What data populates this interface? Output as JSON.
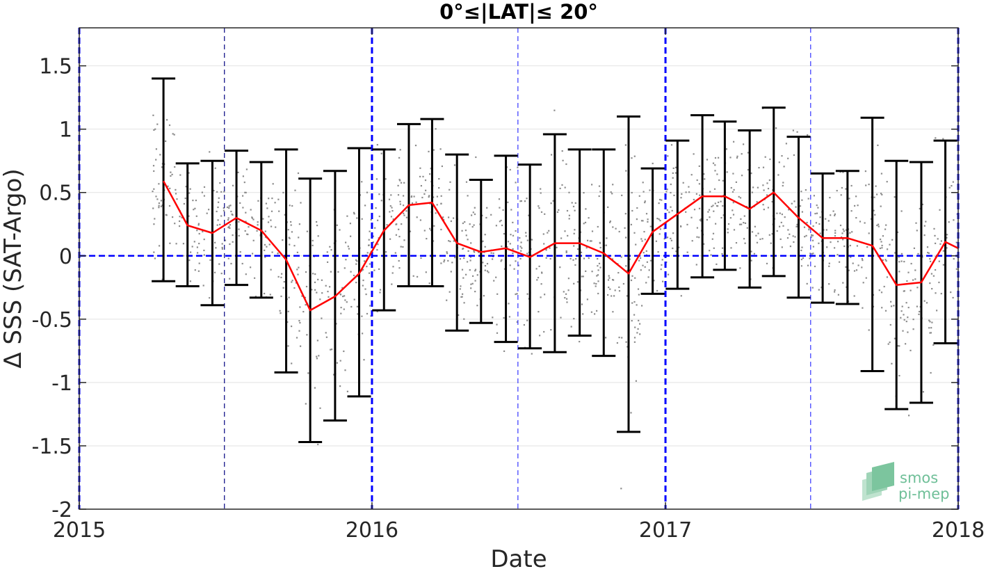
{
  "chart_data": {
    "type": "line",
    "title": "0°≤|LAT|≤ 20°",
    "xlabel": "Date",
    "ylabel": "Δ SSS (SAT-Argo)",
    "xlim": [
      "2015-01-01",
      "2018-01-01"
    ],
    "ylim": [
      -2,
      1.8
    ],
    "x_ticks": [
      "2015-01-01",
      "2016-01-01",
      "2017-01-01",
      "2018-01-01"
    ],
    "x_tick_labels": [
      "2015",
      "2016",
      "2017",
      "2018"
    ],
    "y_ticks": [
      -2,
      -1.5,
      -1,
      -0.5,
      0,
      0.5,
      1,
      1.5
    ],
    "y_tick_labels": [
      "-2",
      "-1.5",
      "-1",
      "-0.5",
      "0",
      "0.5",
      "1",
      "1.5"
    ],
    "grid": "horizontal",
    "reference_line": {
      "y": 0,
      "color": "#0000ff",
      "style": "dashed"
    },
    "year_lines": [
      "2015-01-01",
      "2016-01-01",
      "2017-01-01",
      "2018-01-01"
    ],
    "half_year_lines": [
      "2015-07-01",
      "2016-07-01",
      "2017-07-01"
    ],
    "series": [
      {
        "type": "errorbar",
        "color": "#ff0000",
        "error_color": "#000000",
        "x": [
          "2015-04-16",
          "2015-05-16",
          "2015-06-16",
          "2015-07-16",
          "2015-08-16",
          "2015-09-16",
          "2015-10-16",
          "2015-11-16",
          "2015-12-16",
          "2016-01-16",
          "2016-02-16",
          "2016-03-16",
          "2016-04-16",
          "2016-05-16",
          "2016-06-16",
          "2016-07-16",
          "2016-08-16",
          "2016-09-16",
          "2016-10-16",
          "2016-11-16",
          "2016-12-16",
          "2017-01-16",
          "2017-02-16",
          "2017-03-16",
          "2017-04-16",
          "2017-05-16",
          "2017-06-16",
          "2017-07-16",
          "2017-08-16",
          "2017-09-16",
          "2017-10-16",
          "2017-11-16",
          "2017-12-16"
        ],
        "y": [
          0.59,
          0.24,
          0.18,
          0.3,
          0.2,
          -0.03,
          -0.43,
          -0.32,
          -0.14,
          0.2,
          0.4,
          0.42,
          0.1,
          0.03,
          0.06,
          -0.01,
          0.1,
          0.1,
          0.02,
          -0.14,
          0.19,
          0.33,
          0.47,
          0.47,
          0.37,
          0.5,
          0.3,
          0.14,
          0.14,
          0.08,
          -0.23,
          -0.21,
          0.11
        ],
        "upper": [
          1.4,
          0.73,
          0.75,
          0.83,
          0.74,
          0.84,
          0.61,
          0.67,
          0.85,
          0.84,
          1.04,
          1.08,
          0.8,
          0.6,
          0.79,
          0.72,
          0.96,
          0.84,
          0.84,
          1.1,
          0.69,
          0.91,
          1.11,
          1.06,
          0.99,
          1.17,
          0.94,
          0.65,
          0.67,
          1.09,
          0.75,
          0.74,
          0.91
        ],
        "lower": [
          -0.2,
          -0.24,
          -0.39,
          -0.23,
          -0.33,
          -0.92,
          -1.47,
          -1.3,
          -1.11,
          -0.43,
          -0.24,
          -0.24,
          -0.59,
          -0.53,
          -0.68,
          -0.73,
          -0.76,
          -0.63,
          -0.79,
          -1.39,
          -0.3,
          -0.26,
          -0.17,
          -0.11,
          -0.25,
          -0.16,
          -0.33,
          -0.37,
          -0.38,
          -0.91,
          -1.21,
          -1.16,
          -0.69
        ],
        "line_end": {
          "x": "2018-01-01",
          "y": 0.06
        }
      }
    ],
    "background_points": "scattered gray individual SAT-Argo differences",
    "logo": {
      "line1": "smos",
      "line2": "pi-mep"
    }
  }
}
